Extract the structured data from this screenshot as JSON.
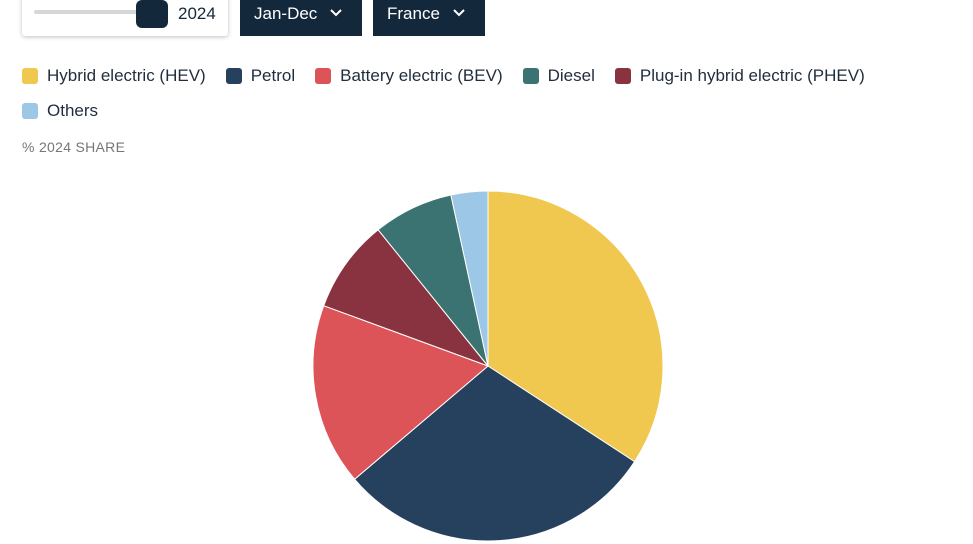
{
  "controls": {
    "year": "2024",
    "period": "Jan-Dec",
    "country": "France"
  },
  "chart_data": {
    "type": "pie",
    "subtitle": "% 2024 SHARE",
    "categories": [
      "Hybrid electric (HEV)",
      "Petrol",
      "Battery electric (BEV)",
      "Plug-in hybrid electric (PHEV)",
      "Diesel",
      "Others"
    ],
    "values": [
      34.2,
      29.6,
      16.8,
      8.6,
      7.4,
      3.4
    ],
    "colors": [
      "#f0c850",
      "#26415e",
      "#dc5358",
      "#8a3340",
      "#3a7371",
      "#9dc7e6"
    ]
  }
}
